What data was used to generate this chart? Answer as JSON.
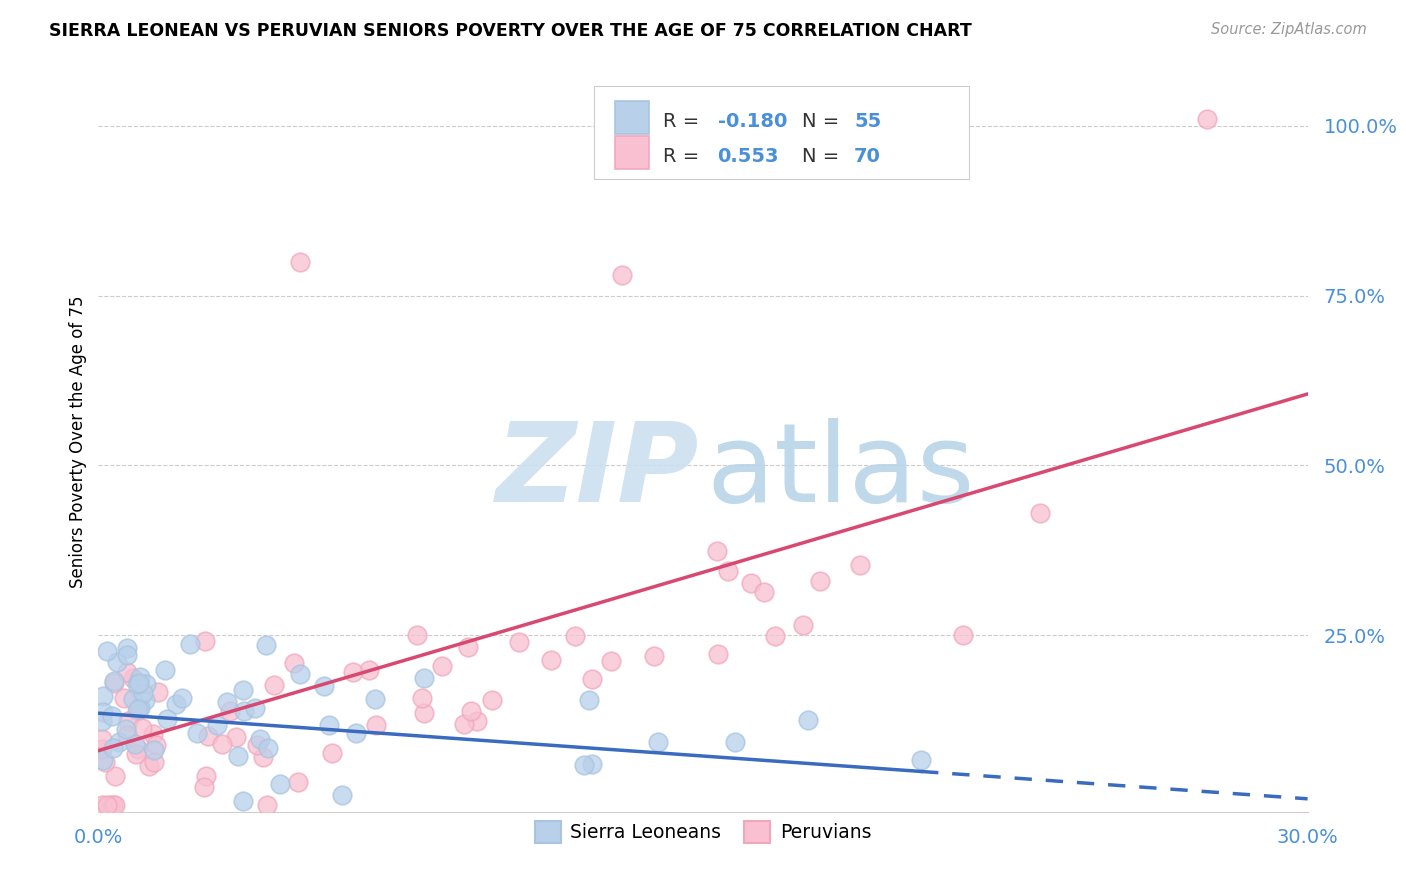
{
  "title": "SIERRA LEONEAN VS PERUVIAN SENIORS POVERTY OVER THE AGE OF 75 CORRELATION CHART",
  "source": "Source: ZipAtlas.com",
  "ylabel": "Seniors Poverty Over the Age of 75",
  "xlim": [
    0.0,
    0.3
  ],
  "ylim": [
    -0.01,
    1.08
  ],
  "sl_color": "#a8c4e0",
  "sl_line_color": "#3a6bbf",
  "sl_fill_color": "#b8d0ea",
  "peru_color": "#f0a8bc",
  "peru_line_color": "#d84870",
  "peru_fill_color": "#f8c0d0",
  "sl_R": -0.18,
  "sl_N": 55,
  "peru_R": 0.553,
  "peru_N": 70,
  "watermark_zip_color": "#ccdff0",
  "watermark_atlas_color": "#b8d4e8",
  "blue_text": "#4a90d9",
  "legend_edge": "#cccccc",
  "grid_color": "#cccccc",
  "source_color": "#999999",
  "bottom_spine_color": "#d0d0d0"
}
